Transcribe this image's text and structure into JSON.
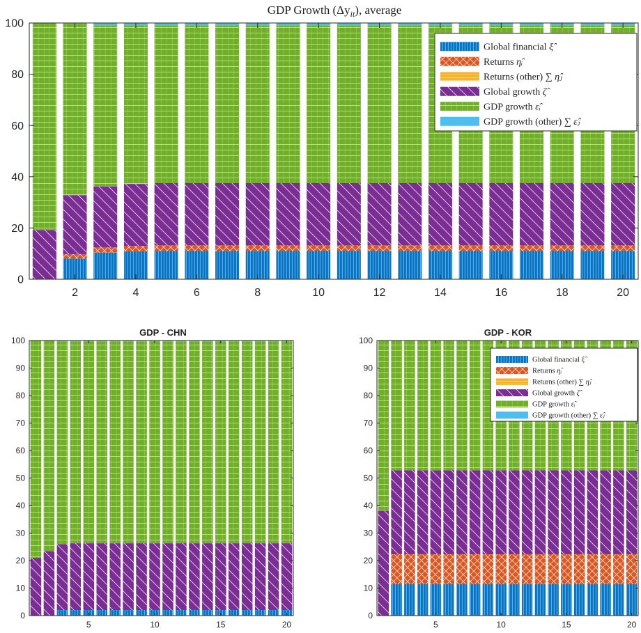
{
  "colors": {
    "global_financial": "#0b72bd",
    "returns": "#dd5620",
    "returns_other": "#f2b22e",
    "global_growth": "#7b2c95",
    "gdp_growth": "#72ad2e",
    "gdp_growth_other": "#4dbeee"
  },
  "chart_data": [
    {
      "id": "main",
      "type": "bar",
      "stacked": true,
      "title": "GDP Growth (Δy",
      "title_sub": "it",
      "title_tail": "), average",
      "xlabel": "",
      "ylabel": "",
      "ylim": [
        0,
        100
      ],
      "yticks": [
        0,
        20,
        40,
        60,
        80,
        100
      ],
      "xticks": [
        2,
        4,
        6,
        8,
        10,
        12,
        14,
        16,
        18,
        20
      ],
      "x": [
        1,
        2,
        3,
        4,
        5,
        6,
        7,
        8,
        9,
        10,
        11,
        12,
        13,
        14,
        15,
        16,
        17,
        18,
        19,
        20
      ],
      "legend_position": "top-right",
      "series": [
        {
          "key": "global_financial",
          "name": "Global financial",
          "name_math": "ξ̂",
          "values": [
            0,
            8,
            10.4,
            10.9,
            11,
            11,
            11,
            11,
            11,
            11,
            11,
            11,
            11,
            11,
            11,
            11,
            11,
            11,
            11,
            11
          ]
        },
        {
          "key": "returns",
          "name": "Returns",
          "name_math": "η̂ᵢ",
          "values": [
            0,
            1.8,
            2,
            2.1,
            2.2,
            2.2,
            2.2,
            2.2,
            2.2,
            2.2,
            2.2,
            2.2,
            2.2,
            2.2,
            2.2,
            2.2,
            2.2,
            2.2,
            2.2,
            2.2
          ]
        },
        {
          "key": "returns_other",
          "name": "Returns (other)",
          "name_math": "∑ η̂ⱼ",
          "values": [
            0,
            0,
            0,
            0,
            0,
            0,
            0,
            0,
            0,
            0,
            0,
            0,
            0,
            0,
            0,
            0,
            0,
            0,
            0,
            0
          ]
        },
        {
          "key": "global_growth",
          "name": "Global growth",
          "name_math": "ζ̂",
          "values": [
            19.2,
            23,
            23.8,
            24.2,
            24.3,
            24.3,
            24.3,
            24.3,
            24.3,
            24.3,
            24.3,
            24.3,
            24.3,
            24.3,
            24.3,
            24.3,
            24.3,
            24.3,
            24.3,
            24.3
          ]
        },
        {
          "key": "gdp_growth",
          "name": "GDP growth",
          "name_math": "ε̂ᵢ",
          "values": [
            80.8,
            66.9,
            62.9,
            61.9,
            61.6,
            61.6,
            61.6,
            61.6,
            61.6,
            61.6,
            61.6,
            61.6,
            61.6,
            61.6,
            61.6,
            61.6,
            61.6,
            61.6,
            61.6,
            61.6
          ]
        },
        {
          "key": "gdp_growth_other",
          "name": "GDP growth (other)",
          "name_math": "∑ ε̂ⱼ",
          "values": [
            0,
            0.3,
            0.9,
            0.9,
            0.9,
            0.9,
            0.9,
            0.9,
            0.9,
            0.9,
            0.9,
            0.9,
            0.9,
            0.9,
            0.9,
            0.9,
            0.9,
            0.9,
            0.9,
            0.9
          ]
        }
      ]
    },
    {
      "id": "chn",
      "type": "bar",
      "stacked": true,
      "title": "GDP - CHN",
      "xlabel": "",
      "ylabel": "",
      "ylim": [
        0,
        100
      ],
      "yticks": [
        0,
        10,
        20,
        30,
        40,
        50,
        60,
        70,
        80,
        90,
        100
      ],
      "xticks": [
        5,
        10,
        15,
        20
      ],
      "x": [
        1,
        2,
        3,
        4,
        5,
        6,
        7,
        8,
        9,
        10,
        11,
        12,
        13,
        14,
        15,
        16,
        17,
        18,
        19,
        20
      ],
      "series": [
        {
          "key": "global_financial",
          "name": "Global financial",
          "values": [
            0,
            0,
            2,
            2,
            2,
            2,
            2,
            2,
            2,
            2,
            2,
            2,
            2,
            2,
            2,
            2,
            2,
            2,
            2,
            2
          ]
        },
        {
          "key": "returns",
          "name": "Returns",
          "values": [
            0,
            0,
            0,
            0,
            0,
            0,
            0,
            0,
            0,
            0,
            0,
            0,
            0,
            0,
            0,
            0,
            0,
            0,
            0,
            0
          ]
        },
        {
          "key": "returns_other",
          "name": "Returns (other)",
          "values": [
            0,
            0,
            0,
            0,
            0,
            0,
            0,
            0,
            0,
            0,
            0,
            0,
            0,
            0,
            0,
            0,
            0,
            0,
            0,
            0
          ]
        },
        {
          "key": "global_growth",
          "name": "Global growth",
          "values": [
            21,
            23.5,
            24,
            24.3,
            24.3,
            24.3,
            24.3,
            24.3,
            24.3,
            24.3,
            24.3,
            24.3,
            24.3,
            24.3,
            24.3,
            24.3,
            24.3,
            24.3,
            24.3,
            24.3
          ]
        },
        {
          "key": "gdp_growth",
          "name": "GDP growth",
          "values": [
            79,
            76.5,
            73.7,
            73.4,
            73.4,
            73.4,
            73.4,
            73.4,
            73.4,
            73.4,
            73.4,
            73.4,
            73.4,
            73.4,
            73.4,
            73.4,
            73.4,
            73.4,
            73.4,
            73.4
          ]
        },
        {
          "key": "gdp_growth_other",
          "name": "GDP growth (other)",
          "values": [
            0,
            0,
            0.3,
            0.3,
            0.3,
            0.3,
            0.3,
            0.3,
            0.3,
            0.3,
            0.3,
            0.3,
            0.3,
            0.3,
            0.3,
            0.3,
            0.3,
            0.3,
            0.3,
            0.3
          ]
        }
      ]
    },
    {
      "id": "kor",
      "type": "bar",
      "stacked": true,
      "title": "GDP - KOR",
      "xlabel": "",
      "ylabel": "",
      "ylim": [
        0,
        100
      ],
      "yticks": [
        0,
        10,
        20,
        30,
        40,
        50,
        60,
        70,
        80,
        90,
        100
      ],
      "xticks": [
        5,
        10,
        15,
        20
      ],
      "x": [
        1,
        2,
        3,
        4,
        5,
        6,
        7,
        8,
        9,
        10,
        11,
        12,
        13,
        14,
        15,
        16,
        17,
        18,
        19,
        20
      ],
      "legend_position": "top-right",
      "series": [
        {
          "key": "global_financial",
          "name": "Global financial",
          "name_math": "ξ̂",
          "values": [
            0,
            11.5,
            11.5,
            11.5,
            11.5,
            11.5,
            11.5,
            11.5,
            11.5,
            11.5,
            11.5,
            11.5,
            11.5,
            11.5,
            11.5,
            11.5,
            11.5,
            11.5,
            11.5,
            11.5
          ]
        },
        {
          "key": "returns",
          "name": "Returns",
          "name_math": "η̂ᵢ",
          "values": [
            0,
            10.8,
            10.8,
            10.8,
            10.8,
            10.8,
            10.8,
            10.8,
            10.8,
            10.8,
            10.8,
            10.8,
            10.8,
            10.8,
            10.8,
            10.8,
            10.8,
            10.8,
            10.8,
            10.8
          ]
        },
        {
          "key": "returns_other",
          "name": "Returns (other)",
          "name_math": "∑ η̂ⱼ",
          "values": [
            0,
            0,
            0,
            0,
            0,
            0,
            0,
            0,
            0,
            0,
            0,
            0,
            0,
            0,
            0,
            0,
            0,
            0,
            0,
            0
          ]
        },
        {
          "key": "global_growth",
          "name": "Global growth",
          "name_math": "ζ̂",
          "values": [
            38,
            30.5,
            30.5,
            30.5,
            30.5,
            30.5,
            30.5,
            30.5,
            30.5,
            30.5,
            30.5,
            30.5,
            30.5,
            30.5,
            30.5,
            30.5,
            30.5,
            30.5,
            30.5,
            30.5
          ]
        },
        {
          "key": "gdp_growth",
          "name": "GDP growth",
          "name_math": "ε̂ᵢ",
          "values": [
            62,
            47.2,
            47.2,
            47.2,
            47.2,
            47.2,
            47.2,
            47.2,
            47.2,
            47.2,
            47.2,
            47.2,
            47.2,
            47.2,
            47.2,
            47.2,
            47.2,
            47.2,
            47.2,
            47.2
          ]
        },
        {
          "key": "gdp_growth_other",
          "name": "GDP growth (other)",
          "name_math": "∑ ε̂ⱼ",
          "values": [
            0,
            0,
            0,
            0,
            0,
            0,
            0,
            0,
            0,
            0,
            0,
            0,
            0,
            0,
            0,
            0,
            0,
            0,
            0,
            0
          ]
        }
      ]
    }
  ]
}
